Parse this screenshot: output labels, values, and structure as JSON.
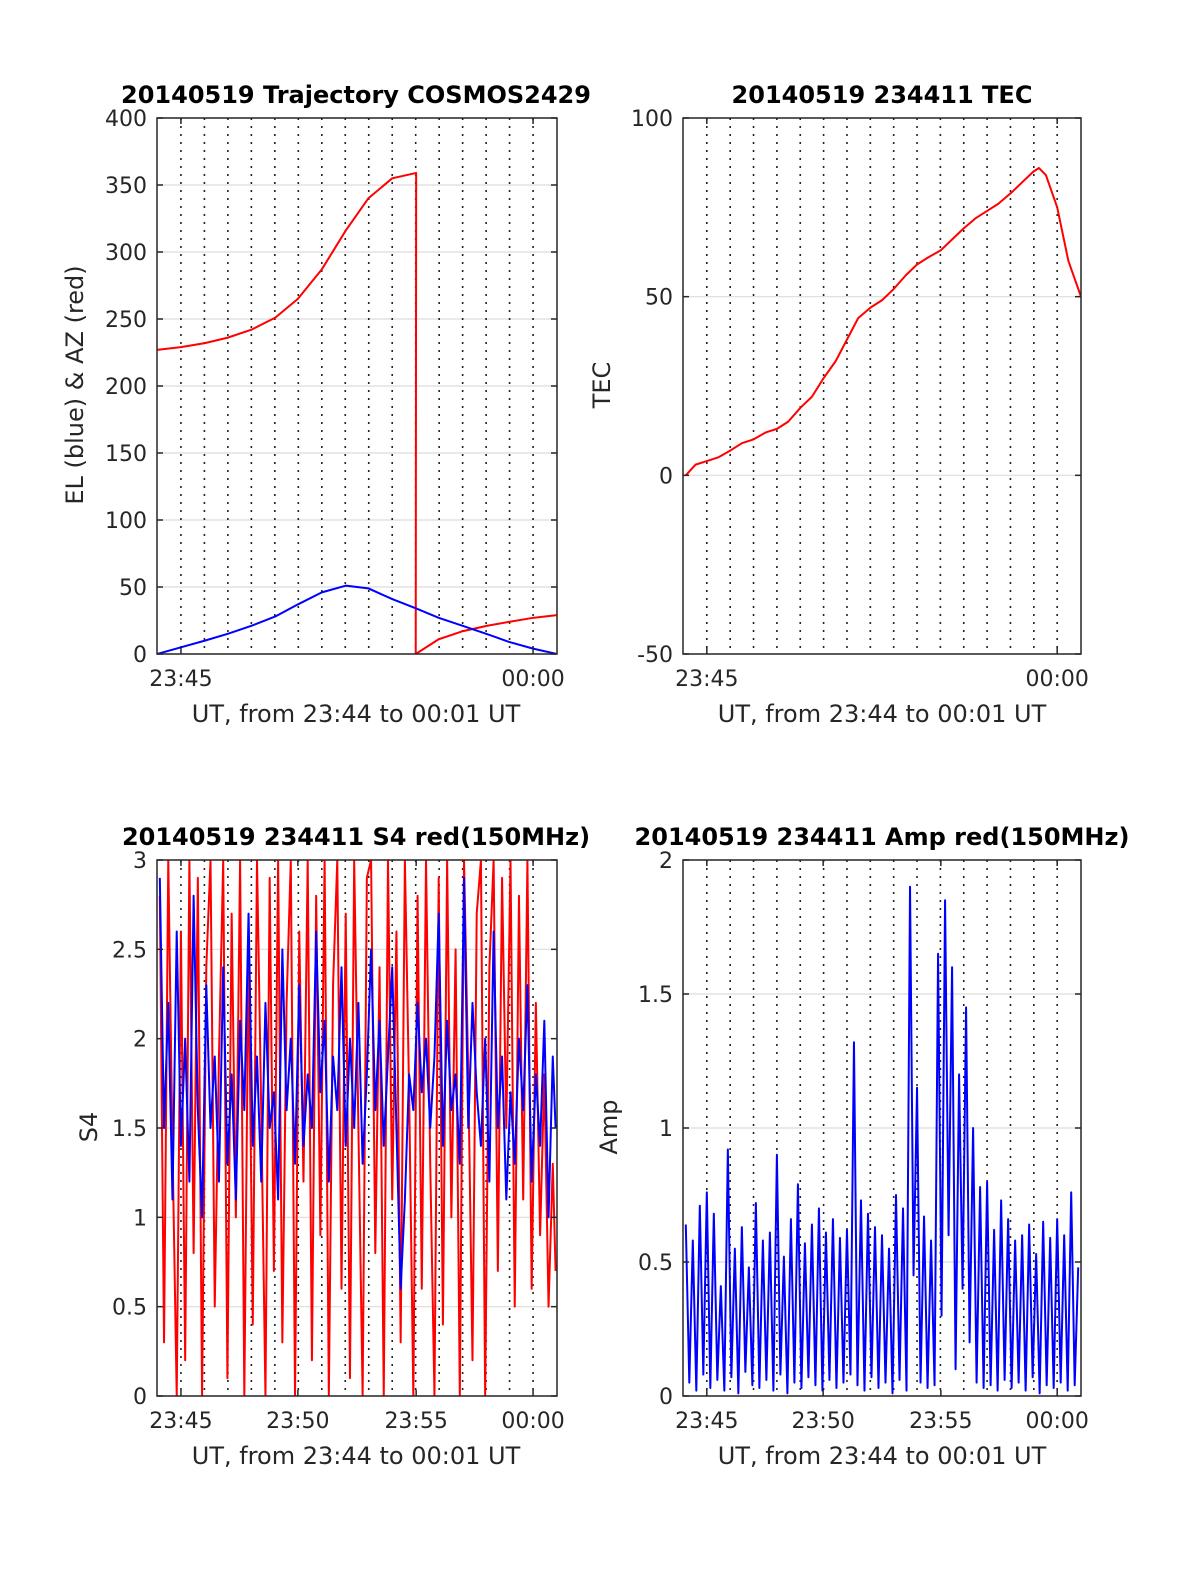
{
  "figure": {
    "background": "#ffffff",
    "panels": [
      "traj",
      "tec",
      "s4",
      "amp"
    ]
  },
  "chart_data": [
    {
      "id": "traj",
      "type": "line",
      "title": "20140519 Trajectory COSMOS2429",
      "xlabel": "UT, from 23:44 to 00:01 UT",
      "ylabel": "EL (blue) & AZ (red)",
      "xlim": [
        23.733,
        24.017
      ],
      "ylim": [
        0,
        400
      ],
      "yticks": [
        0,
        50,
        100,
        150,
        200,
        250,
        300,
        350,
        400
      ],
      "xticks": [
        {
          "value": 23.75,
          "label": "23:45"
        },
        {
          "value": 24.0,
          "label": "00:00"
        }
      ],
      "grid": "horizontal solid, vertical dotted each minute",
      "series": [
        {
          "color": "#ff0000",
          "x": [
            23.733,
            23.75,
            23.767,
            23.783,
            23.8,
            23.817,
            23.833,
            23.85,
            23.867,
            23.883,
            23.9,
            23.917,
            23.9167,
            23.933,
            23.95,
            23.967,
            23.983,
            24.0,
            24.017
          ],
          "values": [
            227,
            229,
            232,
            236,
            242,
            251,
            265,
            287,
            316,
            340,
            355,
            359,
            0,
            11,
            17,
            21,
            24,
            27,
            29
          ]
        },
        {
          "color": "#0000ff",
          "x": [
            23.733,
            23.75,
            23.767,
            23.783,
            23.8,
            23.817,
            23.833,
            23.85,
            23.867,
            23.883,
            23.9,
            23.917,
            23.933,
            23.95,
            23.967,
            23.983,
            24.0,
            24.017
          ],
          "values": [
            0,
            5,
            10,
            15,
            21,
            28,
            37,
            46,
            51,
            49,
            41,
            34,
            27,
            21,
            15,
            9,
            4,
            0
          ]
        }
      ]
    },
    {
      "id": "tec",
      "type": "line",
      "title": "20140519 234411 TEC",
      "xlabel": "UT, from 23:44 to 00:01 UT",
      "ylabel": "TEC",
      "xlim": [
        23.733,
        24.017
      ],
      "ylim": [
        -50,
        100
      ],
      "yticks": [
        -50,
        0,
        50,
        100
      ],
      "xticks": [
        {
          "value": 23.75,
          "label": "23:45"
        },
        {
          "value": 24.0,
          "label": "00:00"
        }
      ],
      "grid": "horizontal solid, vertical dotted each minute",
      "series": [
        {
          "color": "#ff0000",
          "x": [
            23.735,
            23.742,
            23.75,
            23.758,
            23.767,
            23.775,
            23.783,
            23.792,
            23.8,
            23.808,
            23.817,
            23.825,
            23.833,
            23.842,
            23.85,
            23.858,
            23.867,
            23.875,
            23.883,
            23.892,
            23.9,
            23.908,
            23.917,
            23.925,
            23.933,
            23.942,
            23.95,
            23.958,
            23.967,
            23.975,
            23.983,
            23.987,
            23.992,
            24.0,
            24.008,
            24.017
          ],
          "values": [
            0,
            3,
            4,
            5,
            7,
            9,
            10,
            12,
            13,
            15,
            19,
            22,
            27,
            32,
            38,
            44,
            47,
            49,
            52,
            56,
            59,
            61,
            63,
            66,
            69,
            72,
            74,
            76,
            79,
            82,
            85,
            86,
            84,
            75,
            60,
            50
          ]
        }
      ]
    },
    {
      "id": "s4",
      "type": "line",
      "title": "20140519 234411 S4 red(150MHz)",
      "xlabel": "UT, from 23:44 to 00:01 UT",
      "ylabel": "S4",
      "xlim": [
        23.733,
        24.017
      ],
      "ylim": [
        0,
        3
      ],
      "yticks": [
        0,
        0.5,
        1,
        1.5,
        2,
        2.5,
        3
      ],
      "xticks": [
        {
          "value": 23.75,
          "label": "23:45"
        },
        {
          "value": 23.833,
          "label": "23:50"
        },
        {
          "value": 23.917,
          "label": "23:55"
        },
        {
          "value": 24.0,
          "label": "00:00"
        }
      ],
      "grid": "horizontal solid, vertical dotted each minute",
      "series": [
        {
          "color": "#ff0000",
          "x": [
            23.735,
            23.738,
            23.741,
            23.744,
            23.747,
            23.75,
            23.753,
            23.756,
            23.759,
            23.762,
            23.765,
            23.768,
            23.771,
            23.774,
            23.777,
            23.78,
            23.783,
            23.786,
            23.789,
            23.792,
            23.795,
            23.798,
            23.801,
            23.804,
            23.807,
            23.81,
            23.813,
            23.816,
            23.819,
            23.822,
            23.825,
            23.828,
            23.831,
            23.834,
            23.837,
            23.84,
            23.843,
            23.846,
            23.849,
            23.852,
            23.855,
            23.858,
            23.861,
            23.864,
            23.867,
            23.87,
            23.873,
            23.876,
            23.879,
            23.882,
            23.885,
            23.888,
            23.891,
            23.894,
            23.897,
            23.9,
            23.903,
            23.906,
            23.909,
            23.912,
            23.915,
            23.918,
            23.921,
            23.924,
            23.927,
            23.93,
            23.933,
            23.936,
            23.939,
            23.942,
            23.945,
            23.948,
            23.951,
            23.954,
            23.957,
            23.96,
            23.963,
            23.966,
            23.969,
            23.972,
            23.975,
            23.978,
            23.981,
            23.984,
            23.987,
            23.99,
            23.993,
            23.996,
            23.999,
            24.002,
            24.005,
            24.008,
            24.011,
            24.014,
            24.016
          ],
          "values": [
            2.8,
            0.3,
            3.0,
            1.4,
            0.0,
            2.6,
            0.2,
            3.0,
            0.8,
            2.9,
            0.0,
            2.4,
            3.0,
            0.5,
            1.9,
            3.0,
            0.1,
            2.7,
            1.0,
            3.0,
            0.0,
            2.5,
            0.4,
            3.0,
            1.6,
            0.0,
            2.9,
            0.7,
            3.0,
            0.3,
            2.2,
            3.0,
            0.0,
            2.6,
            1.2,
            3.0,
            0.2,
            2.8,
            0.9,
            3.0,
            0.0,
            2.3,
            3.0,
            0.6,
            2.7,
            0.1,
            3.0,
            1.5,
            0.0,
            2.9,
            3.0,
            0.8,
            2.4,
            0.0,
            3.0,
            1.1,
            2.6,
            0.3,
            3.0,
            1.7,
            0.0,
            2.8,
            0.6,
            3.0,
            1.3,
            0.0,
            2.9,
            0.4,
            3.0,
            1.0,
            2.5,
            0.0,
            3.0,
            1.8,
            0.2,
            2.7,
            3.0,
            0.0,
            2.4,
            3.0,
            0.7,
            2.9,
            1.5,
            3.0,
            0.5,
            2.8,
            1.1,
            3.0,
            0.6,
            2.2,
            0.9,
            1.8,
            0.5,
            1.3,
            0.7
          ]
        },
        {
          "color": "#0000ff",
          "x": [
            23.735,
            23.738,
            23.741,
            23.744,
            23.747,
            23.75,
            23.753,
            23.756,
            23.759,
            23.762,
            23.765,
            23.768,
            23.771,
            23.774,
            23.777,
            23.78,
            23.783,
            23.786,
            23.789,
            23.792,
            23.795,
            23.798,
            23.801,
            23.804,
            23.807,
            23.81,
            23.813,
            23.816,
            23.819,
            23.822,
            23.825,
            23.828,
            23.831,
            23.834,
            23.837,
            23.84,
            23.843,
            23.846,
            23.849,
            23.852,
            23.855,
            23.858,
            23.861,
            23.864,
            23.867,
            23.87,
            23.873,
            23.876,
            23.879,
            23.882,
            23.885,
            23.888,
            23.891,
            23.894,
            23.897,
            23.9,
            23.903,
            23.906,
            23.909,
            23.912,
            23.915,
            23.918,
            23.921,
            23.924,
            23.927,
            23.93,
            23.933,
            23.936,
            23.939,
            23.942,
            23.945,
            23.948,
            23.951,
            23.954,
            23.957,
            23.96,
            23.963,
            23.966,
            23.969,
            23.972,
            23.975,
            23.978,
            23.981,
            23.984,
            23.987,
            23.99,
            23.993,
            23.996,
            23.999,
            24.002,
            24.005,
            24.008,
            24.011,
            24.014,
            24.016
          ],
          "values": [
            2.9,
            1.5,
            2.2,
            1.1,
            2.6,
            1.4,
            2.0,
            1.2,
            2.8,
            1.6,
            1.0,
            2.3,
            1.5,
            1.9,
            1.2,
            2.4,
            1.3,
            1.8,
            1.1,
            2.1,
            1.6,
            2.7,
            1.4,
            1.9,
            1.2,
            2.2,
            1.5,
            1.7,
            1.1,
            2.5,
            1.6,
            2.0,
            1.3,
            2.3,
            1.4,
            1.8,
            1.5,
            2.6,
            1.7,
            2.1,
            1.2,
            1.9,
            1.6,
            2.4,
            1.4,
            2.0,
            1.5,
            2.2,
            1.3,
            1.8,
            2.5,
            1.6,
            2.1,
            1.4,
            1.9,
            2.4,
            1.5,
            0.6,
            1.1,
            1.8,
            1.6,
            2.2,
            1.7,
            2.0,
            1.5,
            1.9,
            2.7,
            1.4,
            2.1,
            1.6,
            1.8,
            1.3,
            2.9,
            1.5,
            2.2,
            1.7,
            1.4,
            2.0,
            1.2,
            2.6,
            1.5,
            1.9,
            1.1,
            1.7,
            1.3,
            2.0,
            1.6,
            2.3,
            1.2,
            1.8,
            1.4,
            2.1,
            1.0,
            1.9,
            1.5
          ]
        }
      ]
    },
    {
      "id": "amp",
      "type": "line",
      "title": "20140519 234411 Amp red(150MHz)",
      "xlabel": "UT, from 23:44 to 00:01 UT",
      "ylabel": "Amp",
      "xlim": [
        23.733,
        24.017
      ],
      "ylim": [
        0,
        2
      ],
      "yticks": [
        0,
        0.5,
        1,
        1.5,
        2
      ],
      "xticks": [
        {
          "value": 23.75,
          "label": "23:45"
        },
        {
          "value": 23.833,
          "label": "23:50"
        },
        {
          "value": 23.917,
          "label": "23:55"
        },
        {
          "value": 24.0,
          "label": "00:00"
        }
      ],
      "grid": "horizontal solid, vertical dotted each minute",
      "series": [
        {
          "color": "#0000ff",
          "x": [
            23.735,
            23.7375,
            23.74,
            23.7425,
            23.745,
            23.7475,
            23.75,
            23.7525,
            23.755,
            23.7575,
            23.76,
            23.7625,
            23.765,
            23.7675,
            23.77,
            23.7725,
            23.775,
            23.7775,
            23.78,
            23.7825,
            23.785,
            23.7875,
            23.79,
            23.7925,
            23.795,
            23.7975,
            23.8,
            23.8025,
            23.805,
            23.8075,
            23.81,
            23.8125,
            23.815,
            23.8175,
            23.82,
            23.8225,
            23.825,
            23.8275,
            23.83,
            23.8325,
            23.835,
            23.8375,
            23.84,
            23.8425,
            23.845,
            23.8475,
            23.85,
            23.8525,
            23.855,
            23.8575,
            23.86,
            23.8625,
            23.865,
            23.8675,
            23.87,
            23.8725,
            23.875,
            23.8775,
            23.88,
            23.8825,
            23.885,
            23.8875,
            23.89,
            23.8925,
            23.895,
            23.8975,
            23.9,
            23.9025,
            23.905,
            23.9075,
            23.91,
            23.9125,
            23.915,
            23.9175,
            23.92,
            23.9225,
            23.925,
            23.9275,
            23.93,
            23.9325,
            23.935,
            23.9375,
            23.94,
            23.9425,
            23.945,
            23.9475,
            23.95,
            23.9525,
            23.955,
            23.9575,
            23.96,
            23.9625,
            23.965,
            23.9675,
            23.97,
            23.9725,
            23.975,
            23.9775,
            23.98,
            23.9825,
            23.985,
            23.9875,
            23.99,
            23.9925,
            23.995,
            23.9975,
            24.0,
            24.0025,
            24.005,
            24.0075,
            24.01,
            24.0125,
            24.015
          ],
          "values": [
            0.64,
            0.05,
            0.58,
            0.02,
            0.71,
            0.08,
            0.76,
            0.03,
            0.68,
            0.06,
            0.41,
            0.02,
            0.92,
            0.07,
            0.55,
            0.01,
            0.63,
            0.09,
            0.48,
            0.04,
            0.72,
            0.03,
            0.58,
            0.06,
            0.61,
            0.02,
            0.9,
            0.08,
            0.52,
            0.01,
            0.66,
            0.05,
            0.79,
            0.03,
            0.57,
            0.07,
            0.64,
            0.04,
            0.7,
            0.02,
            0.61,
            0.06,
            0.66,
            0.03,
            0.59,
            0.05,
            0.62,
            0.08,
            1.32,
            0.04,
            0.73,
            0.02,
            0.68,
            0.07,
            0.63,
            0.03,
            0.6,
            0.05,
            0.55,
            0.01,
            0.75,
            0.06,
            0.7,
            0.02,
            1.9,
            0.45,
            1.15,
            0.05,
            0.67,
            0.03,
            0.58,
            0.04,
            1.65,
            0.3,
            1.85,
            0.6,
            1.6,
            0.1,
            1.2,
            0.4,
            1.45,
            0.2,
            1.0,
            0.05,
            0.78,
            0.03,
            0.8,
            0.04,
            0.62,
            0.02,
            0.73,
            0.06,
            0.66,
            0.03,
            0.58,
            0.05,
            0.6,
            0.02,
            0.64,
            0.07,
            0.53,
            0.01,
            0.65,
            0.04,
            0.59,
            0.03,
            0.66,
            0.05,
            0.6,
            0.02,
            0.76,
            0.04,
            0.48
          ]
        }
      ]
    }
  ]
}
